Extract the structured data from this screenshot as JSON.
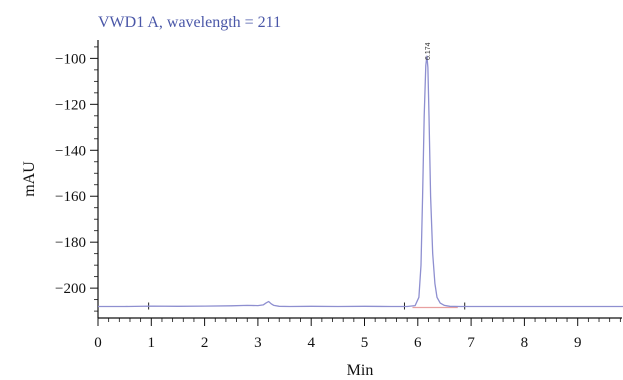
{
  "chart_data": {
    "type": "line",
    "title": "VWD1 A, wavelength = 211",
    "xlabel": "Min",
    "ylabel": "mAU",
    "xlim": [
      0,
      10
    ],
    "ylim": [
      -213,
      -92
    ],
    "x_ticks": [
      "0",
      "1",
      "2",
      "3",
      "4",
      "5",
      "6",
      "7",
      "8",
      "9"
    ],
    "y_ticks": [
      "−100",
      "−120",
      "−140",
      "−160",
      "−180",
      "−200"
    ],
    "grid": false,
    "series": [
      {
        "color": "#8e8fd0",
        "x": [
          0,
          0.5,
          1.0,
          1.5,
          2.0,
          2.5,
          2.8,
          3.0,
          3.1,
          3.15,
          3.2,
          3.25,
          3.3,
          3.4,
          3.6,
          4.0,
          4.5,
          5.0,
          5.5,
          5.8,
          5.95,
          6.02,
          6.06,
          6.09,
          6.12,
          6.15,
          6.17,
          6.19,
          6.21,
          6.24,
          6.28,
          6.32,
          6.36,
          6.42,
          6.5,
          6.6,
          6.8,
          7.0,
          7.5,
          8.0,
          8.5,
          9.0,
          9.5,
          10.0
        ],
        "y": [
          -208,
          -208,
          -207.8,
          -207.9,
          -207.8,
          -207.7,
          -207.5,
          -207.6,
          -207.3,
          -206.5,
          -205.8,
          -206.8,
          -207.5,
          -207.9,
          -208,
          -207.9,
          -208,
          -207.9,
          -208,
          -208,
          -207.6,
          -204,
          -190,
          -160,
          -125,
          -103,
          -99,
          -104,
          -125,
          -160,
          -185,
          -198,
          -204,
          -206.5,
          -207.5,
          -207.9,
          -208,
          -208,
          -208,
          -208,
          -208,
          -208,
          -208,
          -208
        ]
      }
    ],
    "baseline_color": "#e8a0a0",
    "peak_label": "6.174",
    "peak_label_x": 6.17,
    "markers_x": [
      0.95,
      5.75,
      6.88
    ]
  }
}
